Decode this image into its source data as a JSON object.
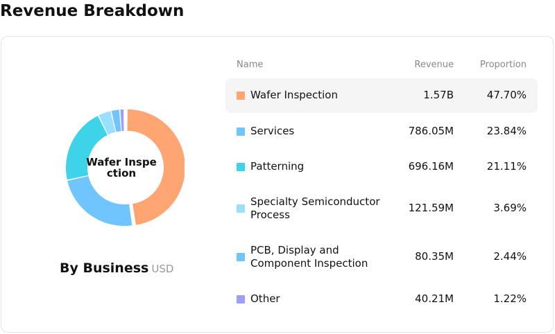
{
  "page": {
    "title": "Revenue Breakdown"
  },
  "chart": {
    "center_label": "Wafer Inspection",
    "caption": "By Business",
    "unit": "USD"
  },
  "table": {
    "headers": {
      "name": "Name",
      "revenue": "Revenue",
      "proportion": "Proportion"
    },
    "rows": [
      {
        "name": "Wafer Inspection",
        "revenue": "1.57B",
        "proportion": "47.70%",
        "color": "#FFA572",
        "selected": true
      },
      {
        "name": "Services",
        "revenue": "786.05M",
        "proportion": "23.84%",
        "color": "#70C5FF"
      },
      {
        "name": "Patterning",
        "revenue": "696.16M",
        "proportion": "21.11%",
        "color": "#3ED3E8"
      },
      {
        "name": "Specialty Semiconductor Process",
        "revenue": "121.59M",
        "proportion": "3.69%",
        "color": "#99E0FF"
      },
      {
        "name": "PCB, Display and Component Inspection",
        "revenue": "80.35M",
        "proportion": "2.44%",
        "color": "#70C5FF"
      },
      {
        "name": "Other",
        "revenue": "40.21M",
        "proportion": "1.22%",
        "color": "#9D9DFA"
      }
    ]
  },
  "chart_data": {
    "type": "pie",
    "variant": "donut",
    "title": "By Business",
    "unit": "USD",
    "categories": [
      "Wafer Inspection",
      "Services",
      "Patterning",
      "Specialty Semiconductor Process",
      "PCB, Display and Component Inspection",
      "Other"
    ],
    "values": [
      47.7,
      23.84,
      21.11,
      3.69,
      2.44,
      1.22
    ],
    "revenue": [
      "1.57B",
      "786.05M",
      "696.16M",
      "121.59M",
      "80.35M",
      "40.21M"
    ],
    "colors": [
      "#FFA572",
      "#70C5FF",
      "#3ED3E8",
      "#99E0FF",
      "#70C5FF",
      "#9D9DFA"
    ],
    "highlighted": "Wafer Inspection"
  }
}
